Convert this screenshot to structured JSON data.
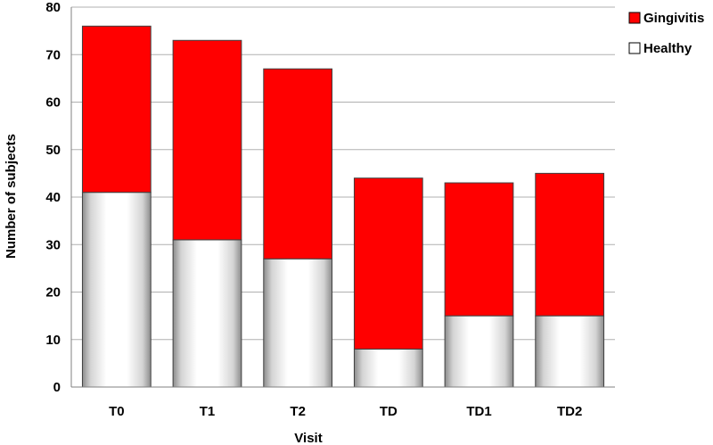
{
  "chart_data": {
    "type": "bar",
    "stacked": true,
    "title": "",
    "xlabel": "Visit",
    "ylabel": "Number of subjects",
    "ylim": [
      0,
      80
    ],
    "yticks": [
      0,
      10,
      20,
      30,
      40,
      50,
      60,
      70,
      80
    ],
    "grid": "horizontal",
    "legend": "top-right",
    "categories": [
      "T0",
      "T1",
      "T2",
      "TD",
      "TD1",
      "TD2"
    ],
    "series": [
      {
        "name": "Healthy",
        "color": "#ffffff",
        "values": [
          41,
          31,
          27,
          8,
          15,
          15
        ]
      },
      {
        "name": "Gingivitis",
        "color": "#ff0000",
        "values": [
          35,
          42,
          40,
          36,
          28,
          30
        ]
      }
    ]
  }
}
